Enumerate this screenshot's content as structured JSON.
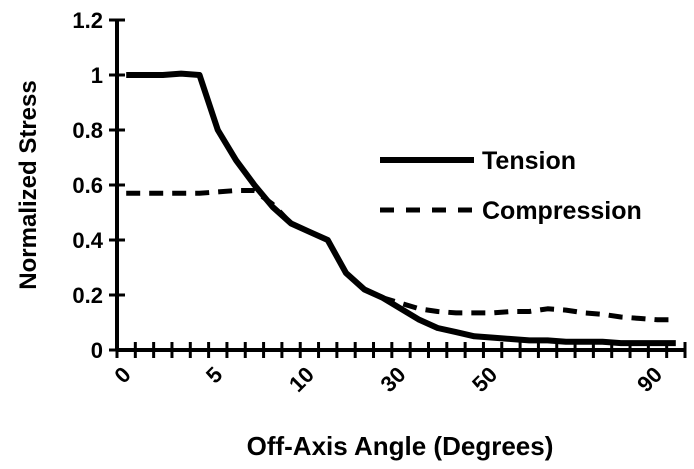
{
  "chart_data": {
    "type": "line",
    "xlabel": "Off-Axis Angle (Degrees)",
    "ylabel": "Normalized Stress",
    "categories": [
      "0",
      null,
      null,
      null,
      null,
      "5",
      null,
      null,
      null,
      null,
      "10",
      null,
      null,
      null,
      null,
      "30",
      null,
      null,
      null,
      null,
      "50",
      null,
      null,
      null,
      null,
      null,
      null,
      null,
      null,
      "90",
      null
    ],
    "series": [
      {
        "name": "Tension",
        "color": "#000000",
        "dash": false,
        "values": [
          1.0,
          1.0,
          1.0,
          1.005,
          1.0,
          0.8,
          0.69,
          0.6,
          0.52,
          0.46,
          0.43,
          0.4,
          0.28,
          0.22,
          0.19,
          0.15,
          0.11,
          0.08,
          0.065,
          0.05,
          0.045,
          0.04,
          0.035,
          0.035,
          0.03,
          0.03,
          0.03,
          0.025,
          0.025,
          0.025,
          0.025
        ]
      },
      {
        "name": "Compression",
        "color": "#000000",
        "dash": true,
        "values": [
          0.57,
          0.57,
          0.57,
          0.57,
          0.57,
          0.575,
          0.58,
          0.58,
          0.53,
          0.46,
          0.43,
          0.4,
          0.28,
          0.22,
          0.19,
          0.17,
          0.15,
          0.14,
          0.135,
          0.135,
          0.135,
          0.14,
          0.14,
          0.15,
          0.145,
          0.135,
          0.13,
          0.12,
          0.115,
          0.11,
          0.11
        ]
      }
    ],
    "ylim": [
      0,
      1.2
    ],
    "yticks": [
      0,
      0.2,
      0.4,
      0.6,
      0.8,
      1,
      1.2
    ],
    "legend": "right"
  }
}
